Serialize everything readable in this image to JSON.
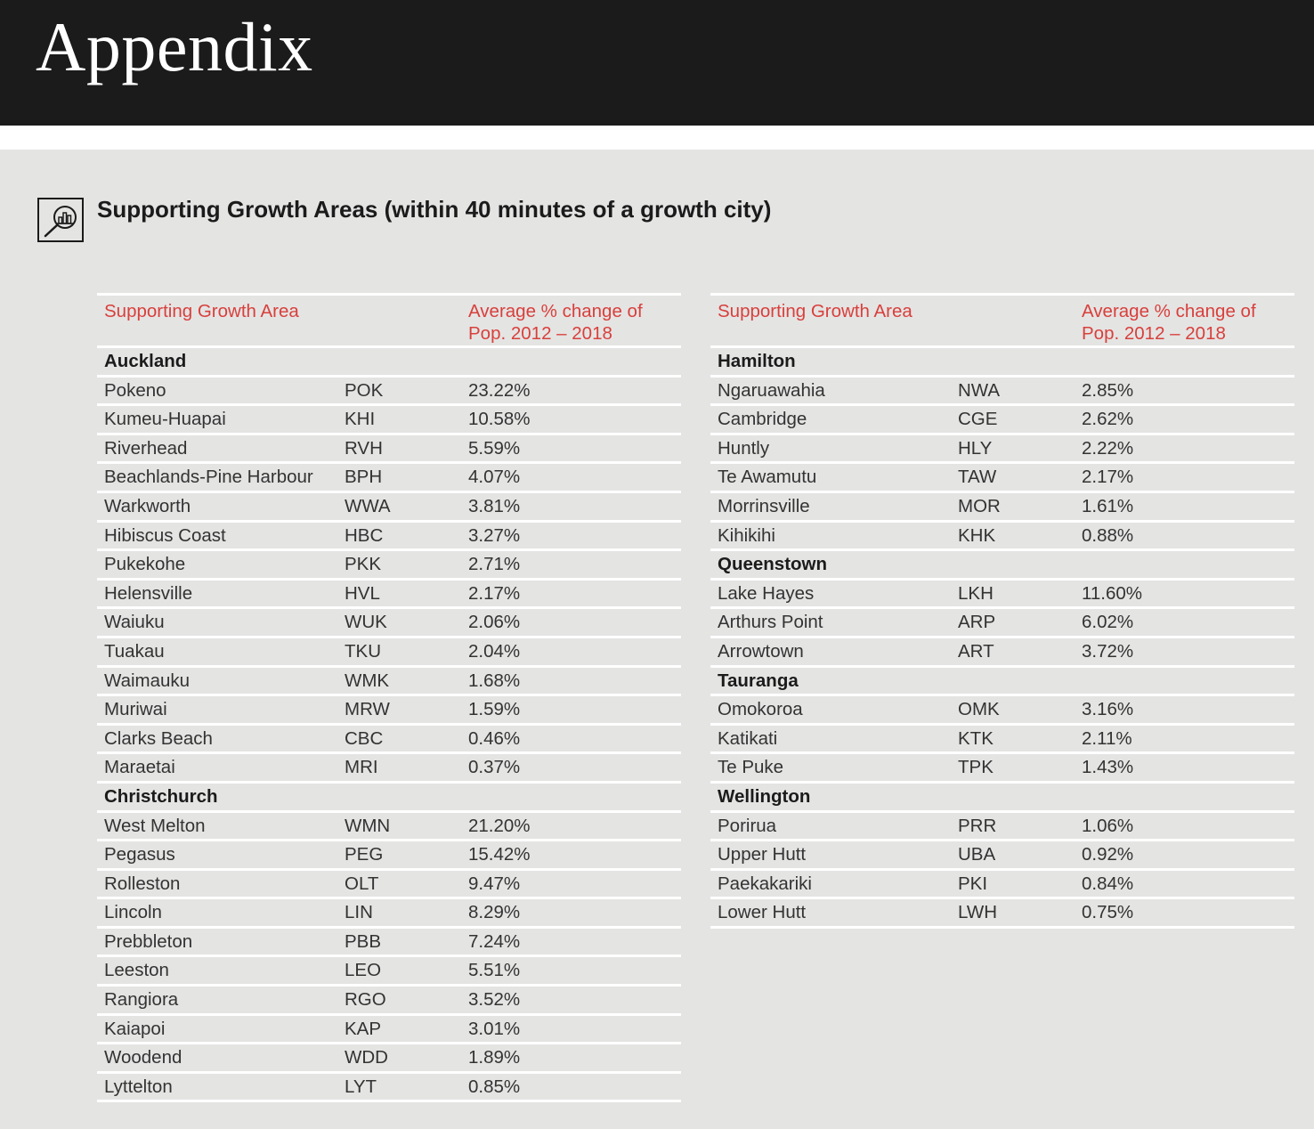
{
  "header": {
    "title": "Appendix"
  },
  "section": {
    "title": "Supporting Growth Areas (within 40 minutes of a growth city)",
    "icon": "magnifier-chart-icon"
  },
  "columns": {
    "area": "Supporting Growth Area",
    "change": "Average % change of Pop. 2012 – 2018"
  },
  "left_table": [
    {
      "group": "Auckland",
      "rows": [
        {
          "name": "Pokeno",
          "code": "POK",
          "change": "23.22%"
        },
        {
          "name": "Kumeu-Huapai",
          "code": "KHI",
          "change": "10.58%"
        },
        {
          "name": "Riverhead",
          "code": "RVH",
          "change": "5.59%"
        },
        {
          "name": "Beachlands-Pine Harbour",
          "code": "BPH",
          "change": "4.07%"
        },
        {
          "name": "Warkworth",
          "code": "WWA",
          "change": "3.81%"
        },
        {
          "name": "Hibiscus Coast",
          "code": "HBC",
          "change": "3.27%"
        },
        {
          "name": "Pukekohe",
          "code": "PKK",
          "change": "2.71%"
        },
        {
          "name": "Helensville",
          "code": "HVL",
          "change": "2.17%"
        },
        {
          "name": "Waiuku",
          "code": "WUK",
          "change": "2.06%"
        },
        {
          "name": "Tuakau",
          "code": "TKU",
          "change": "2.04%"
        },
        {
          "name": "Waimauku",
          "code": "WMK",
          "change": "1.68%"
        },
        {
          "name": "Muriwai",
          "code": "MRW",
          "change": "1.59%"
        },
        {
          "name": "Clarks Beach",
          "code": "CBC",
          "change": "0.46%"
        },
        {
          "name": "Maraetai",
          "code": "MRI",
          "change": "0.37%"
        }
      ]
    },
    {
      "group": "Christchurch",
      "rows": [
        {
          "name": "West Melton",
          "code": "WMN",
          "change": "21.20%"
        },
        {
          "name": "Pegasus",
          "code": "PEG",
          "change": "15.42%"
        },
        {
          "name": "Rolleston",
          "code": "OLT",
          "change": "9.47%"
        },
        {
          "name": "Lincoln",
          "code": "LIN",
          "change": "8.29%"
        },
        {
          "name": "Prebbleton",
          "code": "PBB",
          "change": "7.24%"
        },
        {
          "name": "Leeston",
          "code": "LEO",
          "change": "5.51%"
        },
        {
          "name": "Rangiora",
          "code": "RGO",
          "change": "3.52%"
        },
        {
          "name": "Kaiapoi",
          "code": "KAP",
          "change": "3.01%"
        },
        {
          "name": "Woodend",
          "code": "WDD",
          "change": "1.89%"
        },
        {
          "name": "Lyttelton",
          "code": "LYT",
          "change": "0.85%"
        }
      ]
    }
  ],
  "right_table": [
    {
      "group": "Hamilton",
      "rows": [
        {
          "name": "Ngaruawahia",
          "code": "NWA",
          "change": "2.85%"
        },
        {
          "name": "Cambridge",
          "code": "CGE",
          "change": "2.62%"
        },
        {
          "name": "Huntly",
          "code": "HLY",
          "change": "2.22%"
        },
        {
          "name": "Te Awamutu",
          "code": "TAW",
          "change": "2.17%"
        },
        {
          "name": "Morrinsville",
          "code": "MOR",
          "change": "1.61%"
        },
        {
          "name": "Kihikihi",
          "code": "KHK",
          "change": "0.88%"
        }
      ]
    },
    {
      "group": "Queenstown",
      "rows": [
        {
          "name": "Lake Hayes",
          "code": "LKH",
          "change": "11.60%"
        },
        {
          "name": "Arthurs Point",
          "code": "ARP",
          "change": "6.02%"
        },
        {
          "name": "Arrowtown",
          "code": "ART",
          "change": "3.72%"
        }
      ]
    },
    {
      "group": "Tauranga",
      "rows": [
        {
          "name": "Omokoroa",
          "code": "OMK",
          "change": "3.16%"
        },
        {
          "name": "Katikati",
          "code": "KTK",
          "change": "2.11%"
        },
        {
          "name": "Te Puke",
          "code": "TPK",
          "change": "1.43%"
        }
      ]
    },
    {
      "group": "Wellington",
      "rows": [
        {
          "name": "Porirua",
          "code": "PRR",
          "change": "1.06%"
        },
        {
          "name": "Upper Hutt",
          "code": "UBA",
          "change": "0.92%"
        },
        {
          "name": "Paekakariki",
          "code": "PKI",
          "change": "0.84%"
        },
        {
          "name": "Lower Hutt",
          "code": "LWH",
          "change": "0.75%"
        }
      ]
    }
  ]
}
